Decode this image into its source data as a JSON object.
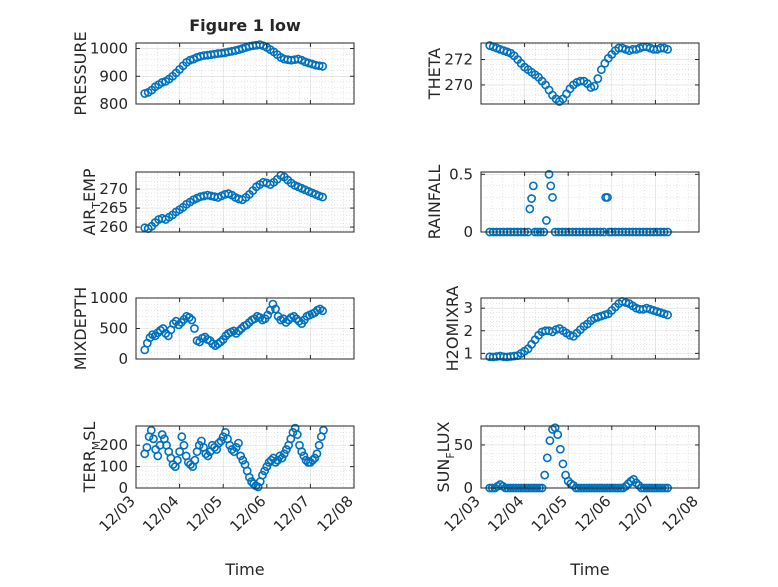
{
  "figure": {
    "background": "#ffffff",
    "marker_color": "#0072bd",
    "grid_color": "#9a9a9a"
  },
  "chart_data": [
    {
      "id": "pressure",
      "type": "scatter",
      "title": "Figure 1 low",
      "xlabel": "",
      "ylabel": "PRESSURE",
      "xlim": [
        0,
        5
      ],
      "ylim": [
        800,
        1020
      ],
      "yticks": [
        800,
        900,
        1000
      ],
      "ytick_labels": [
        "800",
        "900",
        "1000"
      ],
      "xtick_labels": [],
      "grid": true,
      "x": [
        0.2,
        0.28,
        0.36,
        0.44,
        0.52,
        0.6,
        0.68,
        0.76,
        0.84,
        0.92,
        1.0,
        1.08,
        1.16,
        1.24,
        1.32,
        1.4,
        1.48,
        1.56,
        1.64,
        1.72,
        1.8,
        1.88,
        1.96,
        2.04,
        2.12,
        2.2,
        2.28,
        2.36,
        2.44,
        2.52,
        2.6,
        2.68,
        2.76,
        2.84,
        2.92,
        3.0,
        3.08,
        3.16,
        3.24,
        3.32,
        3.4,
        3.48,
        3.56,
        3.64,
        3.72,
        3.8,
        3.88,
        3.96,
        4.04,
        4.12,
        4.2,
        4.28
      ],
      "y": [
        838,
        842,
        850,
        862,
        870,
        878,
        882,
        890,
        900,
        912,
        925,
        938,
        950,
        958,
        962,
        968,
        972,
        975,
        976,
        978,
        980,
        982,
        983,
        985,
        988,
        990,
        993,
        996,
        1000,
        1004,
        1008,
        1010,
        1012,
        1014,
        1010,
        1004,
        996,
        988,
        978,
        968,
        962,
        960,
        958,
        960,
        962,
        958,
        952,
        948,
        944,
        940,
        938,
        936
      ]
    },
    {
      "id": "theta",
      "type": "scatter",
      "title": "",
      "xlabel": "",
      "ylabel": "THETA",
      "xlim": [
        0,
        5
      ],
      "ylim": [
        268.5,
        273.3
      ],
      "yticks": [
        270,
        272
      ],
      "ytick_labels": [
        "270",
        "272"
      ],
      "xtick_labels": [],
      "grid": true,
      "x": [
        0.2,
        0.28,
        0.36,
        0.44,
        0.52,
        0.6,
        0.68,
        0.76,
        0.84,
        0.92,
        1.0,
        1.08,
        1.16,
        1.24,
        1.32,
        1.4,
        1.48,
        1.56,
        1.64,
        1.72,
        1.8,
        1.88,
        1.96,
        2.04,
        2.12,
        2.2,
        2.28,
        2.36,
        2.44,
        2.52,
        2.6,
        2.68,
        2.76,
        2.84,
        2.92,
        3.0,
        3.08,
        3.16,
        3.24,
        3.32,
        3.4,
        3.48,
        3.56,
        3.64,
        3.72,
        3.8,
        3.88,
        3.96,
        4.04,
        4.12,
        4.2,
        4.28
      ],
      "y": [
        273.1,
        273.0,
        272.9,
        272.8,
        272.7,
        272.6,
        272.5,
        272.3,
        272.0,
        271.7,
        271.4,
        271.2,
        271.0,
        270.8,
        270.6,
        270.3,
        270.0,
        269.6,
        269.2,
        268.9,
        268.7,
        268.9,
        269.3,
        269.7,
        270.0,
        270.2,
        270.3,
        270.3,
        270.1,
        269.8,
        269.9,
        270.5,
        271.2,
        271.7,
        272.1,
        272.4,
        272.7,
        272.9,
        272.9,
        272.8,
        272.7,
        272.8,
        272.8,
        272.9,
        273.0,
        273.0,
        272.9,
        272.8,
        272.8,
        272.9,
        272.9,
        272.8
      ]
    },
    {
      "id": "air_temp",
      "type": "scatter",
      "title": "",
      "xlabel": "",
      "ylabel": "AIR_TEMP",
      "ylabel_parts": [
        "AIR",
        "T",
        "EMP"
      ],
      "xlim": [
        0,
        5
      ],
      "ylim": [
        258.7,
        274.5
      ],
      "yticks": [
        260,
        265,
        270
      ],
      "ytick_labels": [
        "260",
        "265",
        "270"
      ],
      "xtick_labels": [],
      "grid": true,
      "x": [
        0.2,
        0.28,
        0.36,
        0.44,
        0.52,
        0.6,
        0.68,
        0.76,
        0.84,
        0.92,
        1.0,
        1.08,
        1.16,
        1.24,
        1.32,
        1.4,
        1.48,
        1.56,
        1.64,
        1.72,
        1.8,
        1.88,
        1.96,
        2.04,
        2.12,
        2.2,
        2.28,
        2.36,
        2.44,
        2.52,
        2.6,
        2.68,
        2.76,
        2.84,
        2.92,
        3.0,
        3.08,
        3.16,
        3.24,
        3.32,
        3.4,
        3.48,
        3.56,
        3.64,
        3.72,
        3.8,
        3.88,
        3.96,
        4.04,
        4.12,
        4.2,
        4.28
      ],
      "y": [
        259.8,
        259.6,
        260.2,
        261.2,
        262.0,
        262.3,
        262.0,
        262.6,
        263.2,
        264.0,
        264.6,
        265.2,
        266.0,
        266.6,
        267.2,
        267.6,
        268.0,
        268.2,
        268.4,
        268.2,
        268.0,
        267.8,
        268.2,
        268.6,
        268.8,
        268.4,
        267.8,
        267.4,
        267.2,
        267.8,
        268.6,
        269.6,
        270.6,
        271.2,
        271.8,
        271.6,
        271.2,
        271.8,
        272.6,
        273.6,
        273.2,
        272.4,
        271.6,
        271.0,
        270.6,
        270.2,
        269.8,
        269.4,
        269.0,
        268.6,
        268.2,
        267.9
      ]
    },
    {
      "id": "rainfall",
      "type": "scatter",
      "title": "",
      "xlabel": "",
      "ylabel": "RAINFALL",
      "xlim": [
        0,
        5
      ],
      "ylim": [
        0,
        0.52
      ],
      "yticks": [
        0,
        0.5
      ],
      "ytick_labels": [
        "0",
        "0.5"
      ],
      "xtick_labels": [],
      "grid": true,
      "x": [
        0.2,
        0.28,
        0.36,
        0.44,
        0.52,
        0.6,
        0.68,
        0.76,
        0.84,
        0.92,
        1.0,
        1.08,
        1.12,
        1.16,
        1.2,
        1.24,
        1.3,
        1.36,
        1.44,
        1.5,
        1.56,
        1.6,
        1.64,
        1.7,
        1.78,
        1.86,
        1.94,
        2.02,
        2.1,
        2.18,
        2.26,
        2.34,
        2.42,
        2.5,
        2.58,
        2.66,
        2.74,
        2.82,
        2.86,
        2.9,
        2.94,
        3.0,
        3.08,
        3.16,
        3.24,
        3.32,
        3.4,
        3.48,
        3.56,
        3.64,
        3.72,
        3.8,
        3.88,
        3.96,
        4.04,
        4.12,
        4.2,
        4.28
      ],
      "y": [
        0,
        0,
        0,
        0,
        0,
        0,
        0,
        0,
        0,
        0,
        0,
        0,
        0.2,
        0.29,
        0.4,
        0,
        0,
        0,
        0,
        0.1,
        0.5,
        0.4,
        0.3,
        0,
        0,
        0,
        0,
        0,
        0,
        0,
        0,
        0,
        0,
        0,
        0,
        0,
        0,
        0,
        0.3,
        0.3,
        0,
        0,
        0,
        0,
        0,
        0,
        0,
        0,
        0,
        0,
        0,
        0,
        0,
        0,
        0,
        0,
        0,
        0
      ]
    },
    {
      "id": "mixdepth",
      "type": "scatter",
      "title": "",
      "xlabel": "",
      "ylabel": "MIXDEPTH",
      "xlim": [
        0,
        5
      ],
      "ylim": [
        0,
        1000
      ],
      "yticks": [
        0,
        500,
        1000
      ],
      "ytick_labels": [
        "0",
        "500",
        "1000"
      ],
      "xtick_labels": [],
      "grid": true,
      "x": [
        0.2,
        0.26,
        0.32,
        0.38,
        0.44,
        0.5,
        0.56,
        0.62,
        0.68,
        0.74,
        0.8,
        0.86,
        0.92,
        0.98,
        1.04,
        1.1,
        1.16,
        1.22,
        1.28,
        1.34,
        1.4,
        1.46,
        1.52,
        1.58,
        1.64,
        1.7,
        1.76,
        1.82,
        1.88,
        1.94,
        2.0,
        2.06,
        2.12,
        2.18,
        2.24,
        2.3,
        2.36,
        2.42,
        2.48,
        2.54,
        2.6,
        2.66,
        2.72,
        2.78,
        2.84,
        2.9,
        2.96,
        3.02,
        3.08,
        3.14,
        3.2,
        3.26,
        3.32,
        3.38,
        3.44,
        3.5,
        3.56,
        3.62,
        3.68,
        3.74,
        3.8,
        3.86,
        3.92,
        3.98,
        4.04,
        4.1,
        4.16,
        4.22,
        4.28
      ],
      "y": [
        150,
        260,
        350,
        400,
        380,
        430,
        470,
        500,
        420,
        380,
        480,
        580,
        620,
        560,
        600,
        650,
        700,
        680,
        640,
        500,
        300,
        280,
        340,
        360,
        320,
        300,
        250,
        220,
        250,
        280,
        320,
        380,
        420,
        440,
        460,
        420,
        460,
        500,
        540,
        560,
        600,
        640,
        660,
        700,
        680,
        640,
        660,
        720,
        800,
        900,
        820,
        700,
        640,
        660,
        600,
        640,
        680,
        700,
        660,
        620,
        580,
        640,
        700,
        720,
        740,
        760,
        800,
        820,
        790
      ]
    },
    {
      "id": "h2omixra",
      "type": "scatter",
      "title": "",
      "xlabel": "",
      "ylabel": "H2OMIXRA",
      "xlim": [
        0,
        5
      ],
      "ylim": [
        0.75,
        3.45
      ],
      "yticks": [
        1,
        2,
        3
      ],
      "ytick_labels": [
        "1",
        "2",
        "3"
      ],
      "xtick_labels": [],
      "grid": true,
      "x": [
        0.2,
        0.28,
        0.36,
        0.44,
        0.52,
        0.6,
        0.68,
        0.76,
        0.84,
        0.92,
        1.0,
        1.08,
        1.16,
        1.24,
        1.32,
        1.4,
        1.48,
        1.56,
        1.64,
        1.72,
        1.8,
        1.88,
        1.96,
        2.04,
        2.12,
        2.2,
        2.28,
        2.36,
        2.44,
        2.52,
        2.6,
        2.68,
        2.76,
        2.84,
        2.92,
        3.0,
        3.08,
        3.16,
        3.24,
        3.32,
        3.4,
        3.48,
        3.56,
        3.64,
        3.72,
        3.8,
        3.88,
        3.96,
        4.04,
        4.12,
        4.2,
        4.28
      ],
      "y": [
        0.85,
        0.84,
        0.86,
        0.88,
        0.85,
        0.84,
        0.86,
        0.88,
        0.9,
        1.0,
        1.1,
        1.2,
        1.4,
        1.6,
        1.8,
        1.95,
        2.0,
        2.0,
        1.95,
        2.05,
        2.1,
        2.0,
        1.9,
        1.8,
        1.75,
        1.9,
        2.05,
        2.2,
        2.3,
        2.45,
        2.55,
        2.6,
        2.65,
        2.7,
        2.75,
        2.9,
        3.05,
        3.2,
        3.3,
        3.25,
        3.2,
        3.1,
        3.0,
        2.95,
        2.95,
        3.0,
        2.95,
        2.9,
        2.85,
        2.8,
        2.75,
        2.7
      ]
    },
    {
      "id": "terr_msl",
      "type": "scatter",
      "title": "",
      "xlabel": "Time",
      "ylabel": "TERR_MSL",
      "ylabel_parts": [
        "TERR",
        "M",
        "SL"
      ],
      "xlim": [
        0,
        5
      ],
      "ylim": [
        0,
        290
      ],
      "yticks": [
        0,
        100,
        200
      ],
      "ytick_labels": [
        "0",
        "100",
        "200"
      ],
      "xtick_labels": [
        "12/03",
        "12/04",
        "12/05",
        "12/06",
        "12/07",
        "12/08"
      ],
      "grid": true,
      "x": [
        0.2,
        0.25,
        0.3,
        0.35,
        0.4,
        0.45,
        0.5,
        0.55,
        0.6,
        0.65,
        0.7,
        0.75,
        0.8,
        0.85,
        0.9,
        0.95,
        1.0,
        1.05,
        1.1,
        1.15,
        1.2,
        1.25,
        1.3,
        1.35,
        1.4,
        1.45,
        1.5,
        1.55,
        1.6,
        1.65,
        1.7,
        1.75,
        1.8,
        1.85,
        1.9,
        1.95,
        2.0,
        2.05,
        2.1,
        2.15,
        2.2,
        2.25,
        2.3,
        2.35,
        2.4,
        2.45,
        2.5,
        2.55,
        2.6,
        2.65,
        2.7,
        2.75,
        2.8,
        2.85,
        2.9,
        2.95,
        3.0,
        3.05,
        3.1,
        3.15,
        3.2,
        3.25,
        3.3,
        3.35,
        3.4,
        3.45,
        3.5,
        3.55,
        3.6,
        3.65,
        3.7,
        3.75,
        3.8,
        3.85,
        3.9,
        3.95,
        4.0,
        4.05,
        4.1,
        4.15,
        4.2,
        4.25,
        4.3
      ],
      "y": [
        160,
        190,
        240,
        270,
        230,
        180,
        150,
        200,
        250,
        230,
        200,
        170,
        140,
        110,
        100,
        130,
        170,
        240,
        200,
        150,
        120,
        110,
        100,
        130,
        170,
        200,
        220,
        190,
        160,
        150,
        170,
        200,
        190,
        180,
        210,
        220,
        240,
        260,
        230,
        200,
        180,
        170,
        190,
        210,
        150,
        130,
        110,
        80,
        50,
        30,
        20,
        10,
        5,
        30,
        60,
        80,
        100,
        120,
        130,
        140,
        120,
        130,
        150,
        140,
        160,
        180,
        200,
        230,
        260,
        280,
        250,
        200,
        170,
        150,
        130,
        120,
        120,
        130,
        140,
        160,
        200,
        240,
        270
      ]
    },
    {
      "id": "sun_flux",
      "type": "scatter",
      "title": "",
      "xlabel": "Time",
      "ylabel": "SUN_FLUX",
      "ylabel_parts": [
        "SUN",
        "F",
        "LUX"
      ],
      "xlim": [
        0,
        5
      ],
      "ylim": [
        0,
        72
      ],
      "yticks": [
        0,
        50
      ],
      "ytick_labels": [
        "0",
        "50"
      ],
      "xtick_labels": [
        "12/03",
        "12/04",
        "12/05",
        "12/06",
        "12/07",
        "12/08"
      ],
      "grid": true,
      "x": [
        0.2,
        0.26,
        0.32,
        0.38,
        0.44,
        0.5,
        0.56,
        0.62,
        0.68,
        0.74,
        0.8,
        0.86,
        0.92,
        0.98,
        1.04,
        1.1,
        1.16,
        1.22,
        1.28,
        1.34,
        1.4,
        1.46,
        1.52,
        1.58,
        1.64,
        1.7,
        1.76,
        1.82,
        1.88,
        1.94,
        2.0,
        2.06,
        2.12,
        2.18,
        2.24,
        2.3,
        2.36,
        2.42,
        2.48,
        2.54,
        2.6,
        2.66,
        2.72,
        2.78,
        2.84,
        2.9,
        2.96,
        3.02,
        3.08,
        3.14,
        3.2,
        3.26,
        3.32,
        3.38,
        3.44,
        3.5,
        3.56,
        3.62,
        3.68,
        3.74,
        3.8,
        3.86,
        3.92,
        3.98,
        4.04,
        4.1,
        4.16,
        4.22,
        4.28
      ],
      "y": [
        0,
        0,
        0,
        2,
        4,
        2,
        0,
        0,
        0,
        0,
        0,
        0,
        0,
        0,
        0,
        0,
        0,
        0,
        0,
        0,
        0,
        15,
        35,
        55,
        68,
        70,
        62,
        45,
        28,
        15,
        8,
        5,
        3,
        0,
        0,
        0,
        0,
        0,
        0,
        0,
        0,
        0,
        0,
        0,
        0,
        0,
        0,
        0,
        0,
        0,
        0,
        0,
        2,
        5,
        8,
        10,
        6,
        3,
        0,
        0,
        0,
        0,
        0,
        0,
        0,
        0,
        0,
        0,
        0
      ]
    }
  ]
}
